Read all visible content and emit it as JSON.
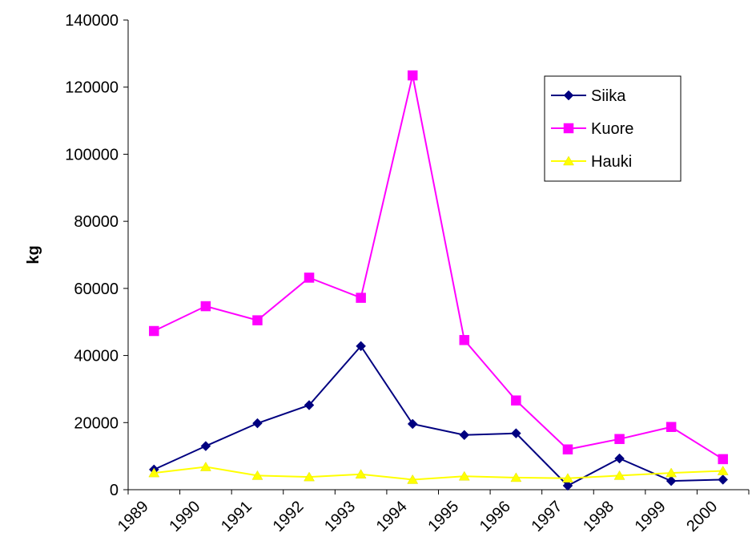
{
  "chart_data": {
    "type": "line",
    "y_label": "kg",
    "categories": [
      "1989",
      "1990",
      "1991",
      "1992",
      "1993",
      "1994",
      "1995",
      "1996",
      "1997",
      "1998",
      "1999",
      "2000"
    ],
    "series": [
      {
        "name": "Siika",
        "color": "#000080",
        "marker": "diamond",
        "values": [
          6000,
          13000,
          19800,
          25200,
          42800,
          19600,
          16300,
          16800,
          1200,
          9300,
          2600,
          3000
        ]
      },
      {
        "name": "Kuore",
        "color": "#ff00ff",
        "marker": "square",
        "values": [
          47300,
          54700,
          50500,
          63200,
          57200,
          123500,
          44600,
          26600,
          12000,
          15100,
          18700,
          9100
        ]
      },
      {
        "name": "Hauki",
        "color": "#ffff00",
        "marker": "triangle",
        "values": [
          5000,
          6800,
          4200,
          3800,
          4600,
          3000,
          4000,
          3600,
          3400,
          4200,
          5000,
          5600
        ]
      }
    ],
    "ylim": [
      0,
      140000
    ],
    "yticks": [
      0,
      20000,
      40000,
      60000,
      80000,
      100000,
      120000,
      140000
    ],
    "grid": false,
    "legend": "upper right"
  }
}
